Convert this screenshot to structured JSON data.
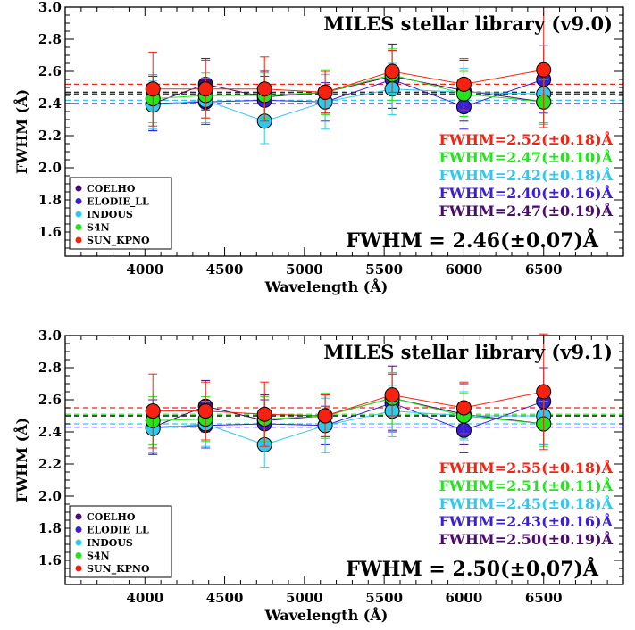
{
  "colors": {
    "COELHO": "#4b0a6e",
    "ELODIE_LL": "#3a1fd4",
    "INDOUS": "#2ec8f0",
    "S4N": "#22e51a",
    "SUN_KPNO": "#f5220f",
    "mean_line": "#000000"
  },
  "chart_data": [
    {
      "type": "scatter",
      "title": "MILES stellar library (v9.0)",
      "xlabel": "Wavelength (Å)",
      "ylabel": "FWHM (Å)",
      "xlim": [
        3500,
        7000
      ],
      "ylim": [
        1.45,
        3.0
      ],
      "x_ticks": [
        "4000",
        "4500",
        "5000",
        "5500",
        "6000",
        "6500"
      ],
      "y_ticks": [
        "1.6",
        "1.8",
        "2.0",
        "2.2",
        "2.4",
        "2.6",
        "2.8",
        "3.0"
      ],
      "x": [
        4050,
        4380,
        4750,
        5130,
        5550,
        6000,
        6500
      ],
      "series": [
        {
          "name": "COELHO",
          "values": [
            2.4,
            2.52,
            2.44,
            2.47,
            2.57,
            2.48,
            2.41
          ],
          "err": [
            0.17,
            0.16,
            0.16,
            0.13,
            0.2,
            0.19,
            0.13
          ]
        },
        {
          "name": "ELODIE_LL",
          "values": [
            2.4,
            2.41,
            2.42,
            2.41,
            2.55,
            2.38,
            2.55
          ],
          "err": [
            0.17,
            0.14,
            0.15,
            0.12,
            0.18,
            0.14,
            0.21
          ]
        },
        {
          "name": "INDOUS",
          "values": [
            2.39,
            2.42,
            2.29,
            2.41,
            2.49,
            2.47,
            2.46
          ],
          "err": [
            0.15,
            0.14,
            0.14,
            0.17,
            0.16,
            0.15,
            0.18
          ]
        },
        {
          "name": "S4N",
          "values": [
            2.43,
            2.45,
            2.45,
            2.47,
            2.58,
            2.46,
            2.41
          ],
          "err": [
            0.15,
            0.14,
            0.14,
            0.14,
            0.16,
            0.14,
            0.14
          ]
        },
        {
          "name": "SUN_KPNO",
          "values": [
            2.49,
            2.49,
            2.49,
            2.47,
            2.6,
            2.52,
            2.61
          ],
          "err": [
            0.23,
            0.18,
            0.2,
            0.13,
            0.13,
            0.16,
            0.36
          ]
        }
      ],
      "mean_lines": [
        {
          "series": "SUN_KPNO",
          "value": 2.52,
          "label": "FWHM=2.52(±0.18)Å"
        },
        {
          "series": "S4N",
          "value": 2.47,
          "label": "FWHM=2.47(±0.10)Å"
        },
        {
          "series": "INDOUS",
          "value": 2.42,
          "label": "FWHM=2.42(±0.18)Å"
        },
        {
          "series": "ELODIE_LL",
          "value": 2.4,
          "label": "FWHM=2.40(±0.16)Å"
        },
        {
          "series": "COELHO",
          "value": 2.47,
          "label": "FWHM=2.47(±0.19)Å"
        }
      ],
      "overall": {
        "value": 2.46,
        "label": "FWHM = 2.46(±0.07)Å"
      },
      "legend": {
        "placement": "bottom-left",
        "entries": [
          "COELHO",
          "ELODIE_LL",
          "INDOUS",
          "S4N",
          "SUN_KPNO"
        ]
      }
    },
    {
      "type": "scatter",
      "title": "MILES stellar library (v9.1)",
      "xlabel": "Wavelength (Å)",
      "ylabel": "FWHM (Å)",
      "xlim": [
        3500,
        7000
      ],
      "ylim": [
        1.45,
        3.0
      ],
      "x_ticks": [
        "4000",
        "4500",
        "5000",
        "5500",
        "6000",
        "6500"
      ],
      "y_ticks": [
        "1.6",
        "1.8",
        "2.0",
        "2.2",
        "2.4",
        "2.6",
        "2.8",
        "3.0"
      ],
      "x": [
        4050,
        4380,
        4750,
        5130,
        5550,
        6000,
        6500
      ],
      "series": [
        {
          "name": "COELHO",
          "values": [
            2.43,
            2.56,
            2.47,
            2.5,
            2.61,
            2.51,
            2.45
          ],
          "err": [
            0.17,
            0.16,
            0.16,
            0.13,
            0.2,
            0.19,
            0.13
          ]
        },
        {
          "name": "ELODIE_LL",
          "values": [
            2.43,
            2.44,
            2.45,
            2.44,
            2.58,
            2.41,
            2.59
          ],
          "err": [
            0.17,
            0.14,
            0.15,
            0.12,
            0.18,
            0.14,
            0.21
          ]
        },
        {
          "name": "INDOUS",
          "values": [
            2.42,
            2.45,
            2.32,
            2.44,
            2.53,
            2.5,
            2.5
          ],
          "err": [
            0.15,
            0.14,
            0.14,
            0.17,
            0.16,
            0.15,
            0.18
          ]
        },
        {
          "name": "S4N",
          "values": [
            2.47,
            2.48,
            2.48,
            2.5,
            2.61,
            2.5,
            2.45
          ],
          "err": [
            0.15,
            0.14,
            0.14,
            0.14,
            0.16,
            0.14,
            0.14
          ]
        },
        {
          "name": "SUN_KPNO",
          "values": [
            2.53,
            2.53,
            2.51,
            2.5,
            2.63,
            2.55,
            2.65
          ],
          "err": [
            0.23,
            0.18,
            0.2,
            0.13,
            0.13,
            0.16,
            0.36
          ]
        }
      ],
      "mean_lines": [
        {
          "series": "SUN_KPNO",
          "value": 2.55,
          "label": "FWHM=2.55(±0.18)Å"
        },
        {
          "series": "S4N",
          "value": 2.51,
          "label": "FWHM=2.51(±0.11)Å"
        },
        {
          "series": "INDOUS",
          "value": 2.45,
          "label": "FWHM=2.45(±0.18)Å"
        },
        {
          "series": "ELODIE_LL",
          "value": 2.43,
          "label": "FWHM=2.43(±0.16)Å"
        },
        {
          "series": "COELHO",
          "value": 2.5,
          "label": "FWHM=2.50(±0.19)Å"
        }
      ],
      "overall": {
        "value": 2.5,
        "label": "FWHM = 2.50(±0.07)Å"
      },
      "legend": {
        "placement": "bottom-left",
        "entries": [
          "COELHO",
          "ELODIE_LL",
          "INDOUS",
          "S4N",
          "SUN_KPNO"
        ]
      }
    }
  ]
}
